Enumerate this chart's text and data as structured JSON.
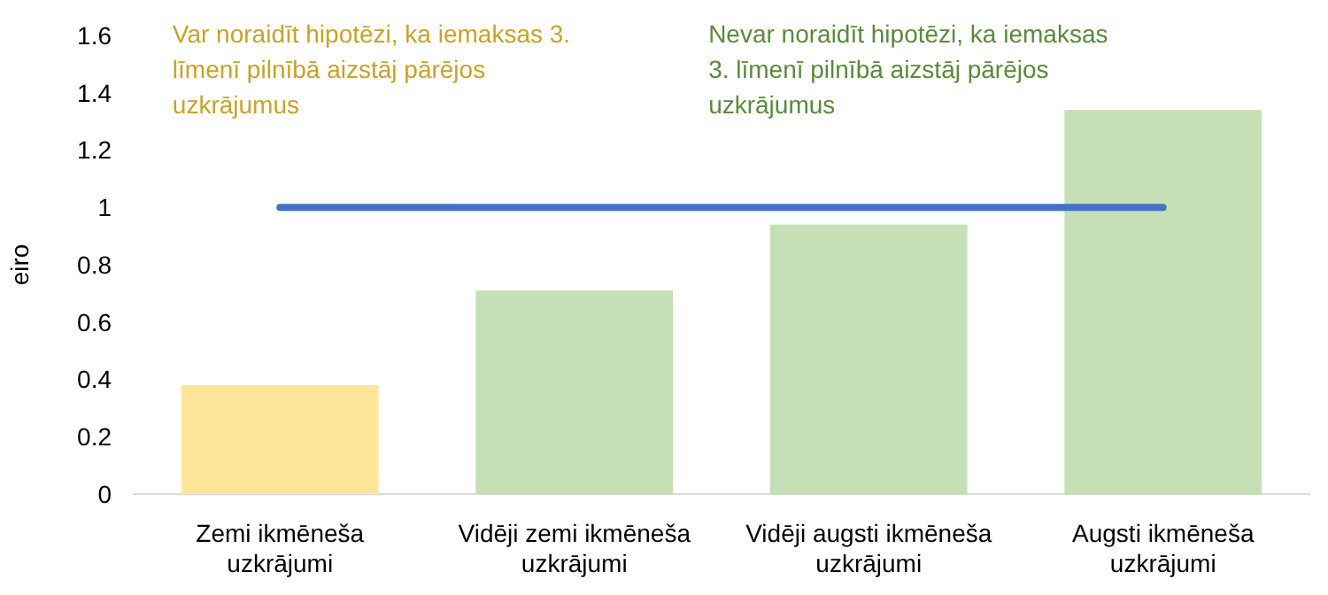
{
  "chart_data": {
    "type": "bar",
    "ylabel": "eiro",
    "categories": [
      "Zemi ikmēneša uzkrājumi",
      "Vidēji zemi ikmēneša uzkrājumi",
      "Vidēji augsti ikmēneša uzkrājumi",
      "Augsti ikmēneša uzkrājumi"
    ],
    "series": [
      {
        "values": [
          0.38,
          0.71,
          0.94,
          1.34
        ],
        "colors": [
          "#ffe699",
          "#c5e0b4",
          "#c5e0b4",
          "#c5e0b4"
        ]
      },
      {
        "type": "line",
        "values": [
          1,
          1,
          1,
          1
        ],
        "color": "#4472c4"
      }
    ],
    "ylim": [
      0,
      1.6
    ],
    "yticks": [
      0,
      0.2,
      0.4,
      0.6,
      0.8,
      1,
      1.2,
      1.4,
      1.6
    ],
    "annotations": [
      "Var noraidīt hipotēzi, ka iemaksas 3. līmenī pilnībā aizstāj pārējos uzkrājumus",
      "Nevar noraidīt hipotēzi, ka iemaksas 3. līmenī pilnībā aizstāj pārējos uzkrājumus"
    ],
    "grid": false
  }
}
